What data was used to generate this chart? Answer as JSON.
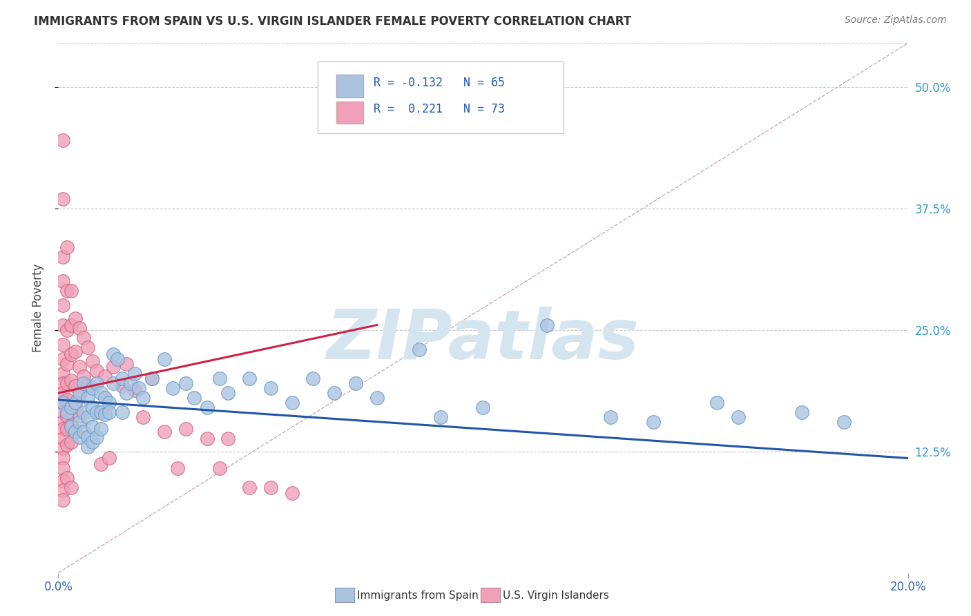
{
  "title": "IMMIGRANTS FROM SPAIN VS U.S. VIRGIN ISLANDER FEMALE POVERTY CORRELATION CHART",
  "source": "Source: ZipAtlas.com",
  "ylabel": "Female Poverty",
  "xlim": [
    0.0,
    0.2
  ],
  "ylim": [
    0.0,
    0.545
  ],
  "yticks": [
    0.125,
    0.25,
    0.375,
    0.5
  ],
  "ytick_labels": [
    "12.5%",
    "25.0%",
    "37.5%",
    "50.0%"
  ],
  "xtick_labels": [
    "0.0%",
    "20.0%"
  ],
  "xtick_positions": [
    0.0,
    0.2
  ],
  "grid_color": "#c8c8c8",
  "background_color": "#ffffff",
  "watermark_text": "ZIPatlas",
  "watermark_color": "#d5e5f0",
  "series": [
    {
      "name": "Immigrants from Spain",
      "color": "#aac4e0",
      "edge_color": "#6699cc",
      "R": -0.132,
      "N": 65,
      "line_color": "#2255aa",
      "trend_x": [
        0.0,
        0.2
      ],
      "trend_y": [
        0.178,
        0.118
      ]
    },
    {
      "name": "U.S. Virgin Islanders",
      "color": "#f0a0b8",
      "edge_color": "#cc6680",
      "R": 0.221,
      "N": 73,
      "line_color": "#cc2244",
      "trend_x": [
        0.0,
        0.075
      ],
      "trend_y": [
        0.185,
        0.255
      ]
    }
  ],
  "diagonal_line": {
    "x": [
      0.0,
      0.2
    ],
    "y": [
      0.0,
      0.545
    ],
    "color": "#ccaaaa",
    "linestyle": "--",
    "linewidth": 1.0
  },
  "blue_points": [
    [
      0.001,
      0.175
    ],
    [
      0.002,
      0.165
    ],
    [
      0.003,
      0.17
    ],
    [
      0.003,
      0.15
    ],
    [
      0.004,
      0.175
    ],
    [
      0.004,
      0.145
    ],
    [
      0.005,
      0.185
    ],
    [
      0.005,
      0.155
    ],
    [
      0.005,
      0.14
    ],
    [
      0.006,
      0.195
    ],
    [
      0.006,
      0.165
    ],
    [
      0.006,
      0.145
    ],
    [
      0.007,
      0.18
    ],
    [
      0.007,
      0.16
    ],
    [
      0.007,
      0.14
    ],
    [
      0.007,
      0.13
    ],
    [
      0.008,
      0.19
    ],
    [
      0.008,
      0.17
    ],
    [
      0.008,
      0.15
    ],
    [
      0.008,
      0.135
    ],
    [
      0.009,
      0.195
    ],
    [
      0.009,
      0.165
    ],
    [
      0.009,
      0.14
    ],
    [
      0.01,
      0.185
    ],
    [
      0.01,
      0.165
    ],
    [
      0.01,
      0.148
    ],
    [
      0.011,
      0.18
    ],
    [
      0.011,
      0.163
    ],
    [
      0.012,
      0.175
    ],
    [
      0.012,
      0.165
    ],
    [
      0.013,
      0.225
    ],
    [
      0.013,
      0.195
    ],
    [
      0.014,
      0.22
    ],
    [
      0.015,
      0.2
    ],
    [
      0.015,
      0.165
    ],
    [
      0.016,
      0.185
    ],
    [
      0.017,
      0.195
    ],
    [
      0.018,
      0.205
    ],
    [
      0.019,
      0.19
    ],
    [
      0.02,
      0.18
    ],
    [
      0.022,
      0.2
    ],
    [
      0.025,
      0.22
    ],
    [
      0.027,
      0.19
    ],
    [
      0.03,
      0.195
    ],
    [
      0.032,
      0.18
    ],
    [
      0.035,
      0.17
    ],
    [
      0.038,
      0.2
    ],
    [
      0.04,
      0.185
    ],
    [
      0.045,
      0.2
    ],
    [
      0.05,
      0.19
    ],
    [
      0.055,
      0.175
    ],
    [
      0.06,
      0.2
    ],
    [
      0.065,
      0.185
    ],
    [
      0.07,
      0.195
    ],
    [
      0.075,
      0.18
    ],
    [
      0.085,
      0.23
    ],
    [
      0.09,
      0.16
    ],
    [
      0.1,
      0.17
    ],
    [
      0.115,
      0.255
    ],
    [
      0.13,
      0.16
    ],
    [
      0.14,
      0.155
    ],
    [
      0.155,
      0.175
    ],
    [
      0.16,
      0.16
    ],
    [
      0.175,
      0.165
    ],
    [
      0.185,
      0.155
    ]
  ],
  "pink_points": [
    [
      0.001,
      0.445
    ],
    [
      0.001,
      0.385
    ],
    [
      0.001,
      0.325
    ],
    [
      0.001,
      0.3
    ],
    [
      0.001,
      0.275
    ],
    [
      0.001,
      0.255
    ],
    [
      0.001,
      0.235
    ],
    [
      0.001,
      0.22
    ],
    [
      0.001,
      0.205
    ],
    [
      0.001,
      0.195
    ],
    [
      0.001,
      0.185
    ],
    [
      0.001,
      0.175
    ],
    [
      0.001,
      0.165
    ],
    [
      0.001,
      0.155
    ],
    [
      0.001,
      0.148
    ],
    [
      0.001,
      0.138
    ],
    [
      0.001,
      0.128
    ],
    [
      0.001,
      0.118
    ],
    [
      0.001,
      0.108
    ],
    [
      0.001,
      0.095
    ],
    [
      0.001,
      0.085
    ],
    [
      0.001,
      0.075
    ],
    [
      0.002,
      0.335
    ],
    [
      0.002,
      0.29
    ],
    [
      0.002,
      0.25
    ],
    [
      0.002,
      0.215
    ],
    [
      0.002,
      0.195
    ],
    [
      0.002,
      0.178
    ],
    [
      0.002,
      0.162
    ],
    [
      0.002,
      0.148
    ],
    [
      0.002,
      0.132
    ],
    [
      0.002,
      0.098
    ],
    [
      0.003,
      0.29
    ],
    [
      0.003,
      0.255
    ],
    [
      0.003,
      0.225
    ],
    [
      0.003,
      0.198
    ],
    [
      0.003,
      0.172
    ],
    [
      0.003,
      0.152
    ],
    [
      0.003,
      0.135
    ],
    [
      0.003,
      0.088
    ],
    [
      0.004,
      0.262
    ],
    [
      0.004,
      0.228
    ],
    [
      0.004,
      0.192
    ],
    [
      0.004,
      0.17
    ],
    [
      0.004,
      0.145
    ],
    [
      0.005,
      0.252
    ],
    [
      0.005,
      0.212
    ],
    [
      0.005,
      0.182
    ],
    [
      0.005,
      0.162
    ],
    [
      0.006,
      0.242
    ],
    [
      0.006,
      0.202
    ],
    [
      0.007,
      0.232
    ],
    [
      0.007,
      0.192
    ],
    [
      0.008,
      0.218
    ],
    [
      0.009,
      0.208
    ],
    [
      0.01,
      0.112
    ],
    [
      0.011,
      0.202
    ],
    [
      0.012,
      0.118
    ],
    [
      0.013,
      0.212
    ],
    [
      0.015,
      0.192
    ],
    [
      0.016,
      0.215
    ],
    [
      0.018,
      0.188
    ],
    [
      0.02,
      0.16
    ],
    [
      0.022,
      0.2
    ],
    [
      0.025,
      0.145
    ],
    [
      0.028,
      0.108
    ],
    [
      0.03,
      0.148
    ],
    [
      0.035,
      0.138
    ],
    [
      0.038,
      0.108
    ],
    [
      0.04,
      0.138
    ],
    [
      0.045,
      0.088
    ],
    [
      0.05,
      0.088
    ],
    [
      0.055,
      0.082
    ]
  ]
}
